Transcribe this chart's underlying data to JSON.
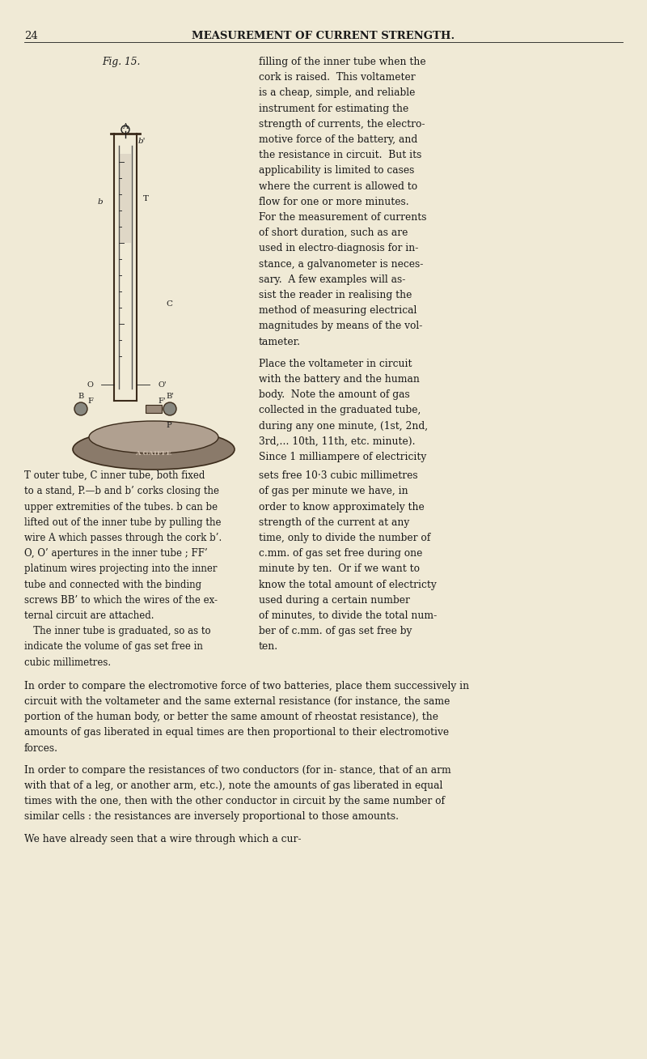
{
  "bg_color": "#f0ead6",
  "page_number": "24",
  "header": "MEASUREMENT OF CURRENT STRENGTH.",
  "fig_label": "Fig. 15.",
  "right_col_lines": [
    "filling of the inner tube when the",
    "cork is raised.  This voltameter",
    "is a cheap, simple, and reliable",
    "instrument for estimating the",
    "strength of currents, the electro-",
    "motive force of the battery, and",
    "the resistance in circuit.  But its",
    "applicability is limited to cases",
    "where the current is allowed to",
    "flow for one or more minutes.",
    "For the measurement of currents",
    "of short duration, such as are",
    "used in electro-diagnosis for in-",
    "stance, a galvanometer is neces-",
    "sary.  A few examples will as-",
    "sist the reader in realising the",
    "method of measuring electrical",
    "magnitudes by means of the vol-",
    "tameter."
  ],
  "right_col_para2": [
    "Place the voltameter in circuit",
    "with the battery and the human",
    "body.  Note the amount of gas",
    "collected in the graduated tube,",
    "during any one minute, (1st, 2nd,",
    "3rd,… 10th, 11th, etc. minute).",
    "Since 1 milliampere of electricity"
  ],
  "two_col_lines": [
    [
      "T outer tube, C inner tube, both fixed",
      "sets free 10·3 cubic millimetres"
    ],
    [
      "to a stand, P.—b and b’ corks closing the",
      "of gas per minute we have, in"
    ],
    [
      "upper extremities of the tubes. b can be",
      "order to know approximately the"
    ],
    [
      "lifted out of the inner tube by pulling the",
      "strength of the current at any"
    ],
    [
      "wire A which passes through the cork b’.",
      "time, only to divide the number of"
    ],
    [
      "O, O’ apertures in the inner tube ; FF’",
      "c.mm. of gas set free during one"
    ],
    [
      "platinum wires projecting into the inner",
      "minute by ten.  Or if we want to"
    ],
    [
      "tube and connected with the binding",
      "know the total amount of electricty"
    ],
    [
      "screws BB’ to which the wires of the ex-",
      "used during a certain number"
    ],
    [
      "ternal circuit are attached.",
      "of minutes, to divide the total num-"
    ],
    [
      "   The inner tube is graduated, so as to",
      "ber of c.mm. of gas set free by"
    ],
    [
      "indicate the volume of gas set free in",
      "ten."
    ],
    [
      "cubic millimetres.",
      ""
    ]
  ],
  "full_para1": "   In order to compare the electromotive force of two batteries, place them successively in circuit with the voltameter and the same external resistance (for instance, the same portion of the human body, or better the same amount of rheostat resistance), the amounts of gas liberated in equal times are then proportional to their electromotive forces.",
  "full_para2": "   In order to compare the resistances of two conductors (for in- stance, that of an arm with that of a leg, or another arm, etc.), note the amounts of gas liberated in equal times with the one, then with the other conductor in circuit by the same number of similar cells : the resistances are inversely proportional to those amounts.",
  "last_line": "We have already seen that a wire through which a cur-",
  "font_size_header": 9.5,
  "font_size_body": 8.8,
  "font_size_page": 9.0,
  "text_color": "#1a1a1a",
  "col_split": 0.395
}
